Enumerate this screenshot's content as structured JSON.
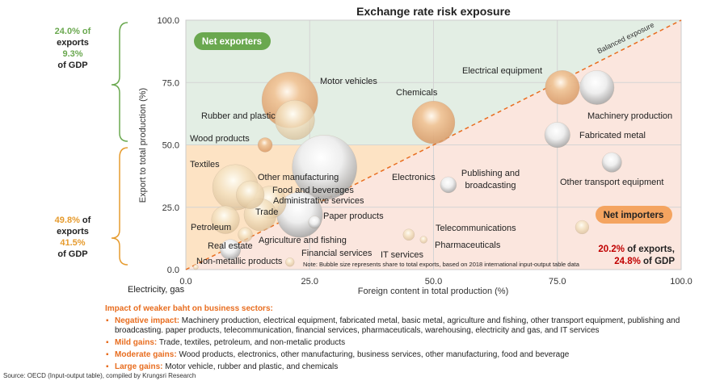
{
  "chart_data": {
    "type": "scatter",
    "title": "Exchange rate risk exposure",
    "xlabel": "Foreign content in total production (%)",
    "ylabel": "Export to total production (%)",
    "xlim": [
      0,
      100
    ],
    "ylim": [
      0,
      100
    ],
    "xticks": [
      "0.0",
      "25.0",
      "50.0",
      "75.0",
      "100.0"
    ],
    "yticks": [
      "0.0",
      "25.0",
      "50.0",
      "75.0",
      "100.0"
    ],
    "grid": true,
    "reference_line": {
      "label": "Balanced exposure",
      "slope": 1
    },
    "zones": {
      "net_exporters": "Net exporters",
      "net_importers": "Net importers"
    },
    "note": "Note: Bubble size represents share to total exports, based on 2018 international input-output table data",
    "bubbles": [
      {
        "name": "Motor vehicles",
        "x": 21,
        "y": 68,
        "size": 12,
        "color": "orange"
      },
      {
        "name": "Rubber and plastic",
        "x": 22,
        "y": 60,
        "size": 6,
        "color": "cream"
      },
      {
        "name": "Chemicals",
        "x": 50,
        "y": 59,
        "size": 7,
        "color": "orange"
      },
      {
        "name": "Electrical equipment",
        "x": 76,
        "y": 73,
        "size": 4.5,
        "color": "orange"
      },
      {
        "name": "Machinery production",
        "x": 83,
        "y": 73,
        "size": 4.5,
        "color": "white"
      },
      {
        "name": "Fabricated metal",
        "x": 75,
        "y": 54,
        "size": 2.5,
        "color": "white"
      },
      {
        "name": "Other transport equipment",
        "x": 86,
        "y": 43,
        "size": 1.5,
        "color": "white"
      },
      {
        "name": "Wood products",
        "x": 16,
        "y": 50,
        "size": 0.8,
        "color": "orange"
      },
      {
        "name": "Textiles",
        "x": 10,
        "y": 33,
        "size": 8,
        "color": "cream"
      },
      {
        "name": "Electronics",
        "x": 28,
        "y": 41,
        "size": 16,
        "color": "white"
      },
      {
        "name": "Other manufacturing",
        "x": 13,
        "y": 30,
        "size": 3,
        "color": "cream"
      },
      {
        "name": "Food and beverages",
        "x": 17,
        "y": 27,
        "size": 4,
        "color": "cream"
      },
      {
        "name": "Administrative services",
        "x": 23,
        "y": 22,
        "size": 8,
        "color": "white"
      },
      {
        "name": "Trade",
        "x": 15,
        "y": 22,
        "size": 4,
        "color": "cream"
      },
      {
        "name": "Petroleum",
        "x": 8,
        "y": 20,
        "size": 3,
        "color": "cream"
      },
      {
        "name": "Paper products",
        "x": 26,
        "y": 19,
        "size": 0.6,
        "color": "white"
      },
      {
        "name": "Agriculture and fishing",
        "x": 12,
        "y": 14,
        "size": 0.8,
        "color": "cream"
      },
      {
        "name": "Real estate",
        "x": 9,
        "y": 8,
        "size": 1.6,
        "color": "white"
      },
      {
        "name": "Publishing and broadcasting",
        "x": 53,
        "y": 34,
        "size": 1,
        "color": "white"
      },
      {
        "name": "Financial services",
        "x": 45,
        "y": 14,
        "size": 0.5,
        "color": "cream"
      },
      {
        "name": "IT services",
        "x": 48,
        "y": 12,
        "size": 0.2,
        "color": "cream"
      },
      {
        "name": "Telecommunications",
        "x": 80,
        "y": 17,
        "size": 0.7,
        "color": "cream"
      },
      {
        "name": "Pharmaceuticals",
        "x": 60,
        "y": 20,
        "size": 0,
        "color": "cream"
      },
      {
        "name": "Non-metallic products",
        "x": 21,
        "y": 3,
        "size": 0.3,
        "color": "cream"
      },
      {
        "name": "Electricity, gas",
        "x": 2,
        "y": 1,
        "size": 0.1,
        "color": "cream"
      }
    ]
  },
  "side_notes": {
    "exporters": {
      "pct_exports": "24.0%",
      "of": " of",
      "exports": "exports",
      "pct_gdp": "9.3%",
      "gdp": "of GDP"
    },
    "middle": {
      "pct_exports": "49.8%",
      "of": " of",
      "exports": "exports",
      "pct_gdp": "41.5%",
      "gdp": "of GDP"
    },
    "importers": {
      "pct_exports": "20.2%",
      "exports": " of exports,",
      "pct_gdp": "24.8%",
      "gdp": " of GDP"
    }
  },
  "impact": {
    "heading": "Impact of weaker baht on business sectors:",
    "items": [
      {
        "label": "Negative impact:",
        "text": " Machinery production, electrical equipment, fabricated metal, basic metal, agriculture and fishing, other transport equipment, publishing and broadcasting. paper products, telecommunication, financial services, pharmaceuticals, warehousing, electricity and gas, and IT services"
      },
      {
        "label": "Mild gains:",
        "text": "  Trade, textiles, petroleum, and non-metalic products"
      },
      {
        "label": "Moderate gains:",
        "text": " Wood products, electronics, other manufacturing, business services, other manufacturing, food and beverage"
      },
      {
        "label": "Large gains:",
        "text": " Motor vehicle, rubber and plastic, and chemicals"
      }
    ]
  },
  "source": "Source: OECD (Input-output table), compiled by Krungsri Research",
  "colors": {
    "green": "#6aa84f",
    "orange": "#e69b2e",
    "red": "#c00000",
    "accent": "#e86d1f"
  }
}
